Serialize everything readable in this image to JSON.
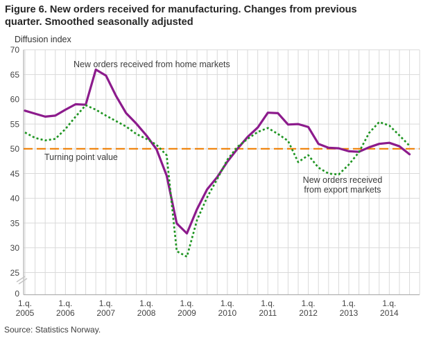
{
  "title": "Figure 6. New orders received for manufacturing. Changes from previous quarter. Smoothed seasonally adjusted",
  "y_axis_title": "Diffusion index",
  "source": "Source: Statistics Norway.",
  "annotations": {
    "home_series_label": "New orders received from home markets",
    "turning_point_label": "Turning point value",
    "export_series_label_line1": "New orders received",
    "export_series_label_line2": "from export markets"
  },
  "colors": {
    "home_line": "#8c1b8c",
    "export_line": "#1f9522",
    "turning_point_line": "#ef7d00",
    "grid": "#d9d9d9",
    "axis": "#b0b0b0",
    "tick_text": "#444444"
  },
  "chart_data": {
    "type": "line",
    "title": "Figure 6. New orders received for manufacturing. Changes from previous quarter. Smoothed seasonally adjusted",
    "ylabel": "Diffusion index",
    "y_ticks": [
      0,
      25,
      30,
      35,
      40,
      45,
      50,
      55,
      60,
      65,
      70
    ],
    "y_break_between": [
      0,
      25
    ],
    "ylim": [
      25,
      70
    ],
    "grid": true,
    "x_tick_labels": [
      "1.q. 2005",
      "1.q. 2006",
      "1.q. 2007",
      "1.q. 2008",
      "1.q. 2009",
      "1.q. 2010",
      "1.q. 2011",
      "1.q. 2012",
      "1.q. 2013",
      "1.q. 2014"
    ],
    "quarters": [
      "2005-Q1",
      "2005-Q2",
      "2005-Q3",
      "2005-Q4",
      "2006-Q1",
      "2006-Q2",
      "2006-Q3",
      "2006-Q4",
      "2007-Q1",
      "2007-Q2",
      "2007-Q3",
      "2007-Q4",
      "2008-Q1",
      "2008-Q2",
      "2008-Q3",
      "2008-Q4",
      "2009-Q1",
      "2009-Q2",
      "2009-Q3",
      "2009-Q4",
      "2010-Q1",
      "2010-Q2",
      "2010-Q3",
      "2010-Q4",
      "2011-Q1",
      "2011-Q2",
      "2011-Q3",
      "2011-Q4",
      "2012-Q1",
      "2012-Q2",
      "2012-Q3",
      "2012-Q4",
      "2013-Q1",
      "2013-Q2",
      "2013-Q3",
      "2013-Q4",
      "2014-Q1",
      "2014-Q2",
      "2014-Q3"
    ],
    "series": [
      {
        "name": "New orders received from home markets",
        "color": "#8c1b8c",
        "style": "solid",
        "values": [
          57.7,
          57.1,
          56.5,
          56.7,
          57.9,
          59.0,
          58.9,
          66.0,
          64.8,
          60.7,
          57.2,
          55.1,
          52.7,
          49.9,
          44.6,
          34.9,
          32.9,
          37.8,
          41.8,
          44.3,
          47.4,
          50.0,
          52.4,
          54.3,
          57.3,
          57.2,
          54.9,
          55.0,
          54.4,
          51.0,
          50.2,
          50.1,
          49.5,
          49.4,
          50.3,
          51.0,
          51.2,
          50.5,
          48.9
        ]
      },
      {
        "name": "New orders received from export markets",
        "color": "#1f9522",
        "style": "dotted",
        "values": [
          53.3,
          52.2,
          51.7,
          52.0,
          54.0,
          56.5,
          58.8,
          57.9,
          56.7,
          55.6,
          54.5,
          53.0,
          52.0,
          50.8,
          48.7,
          29.3,
          28.2,
          35.6,
          40.2,
          43.9,
          47.8,
          50.4,
          52.0,
          53.4,
          54.2,
          53.0,
          51.6,
          47.3,
          48.7,
          46.2,
          45.0,
          44.8,
          46.8,
          49.3,
          53.2,
          55.4,
          54.7,
          52.7,
          50.6
        ]
      }
    ],
    "reference_line": {
      "label": "Turning point value",
      "value": 50,
      "color": "#ef7d00",
      "style": "dashed"
    },
    "legend_position": "inline-annotations"
  }
}
